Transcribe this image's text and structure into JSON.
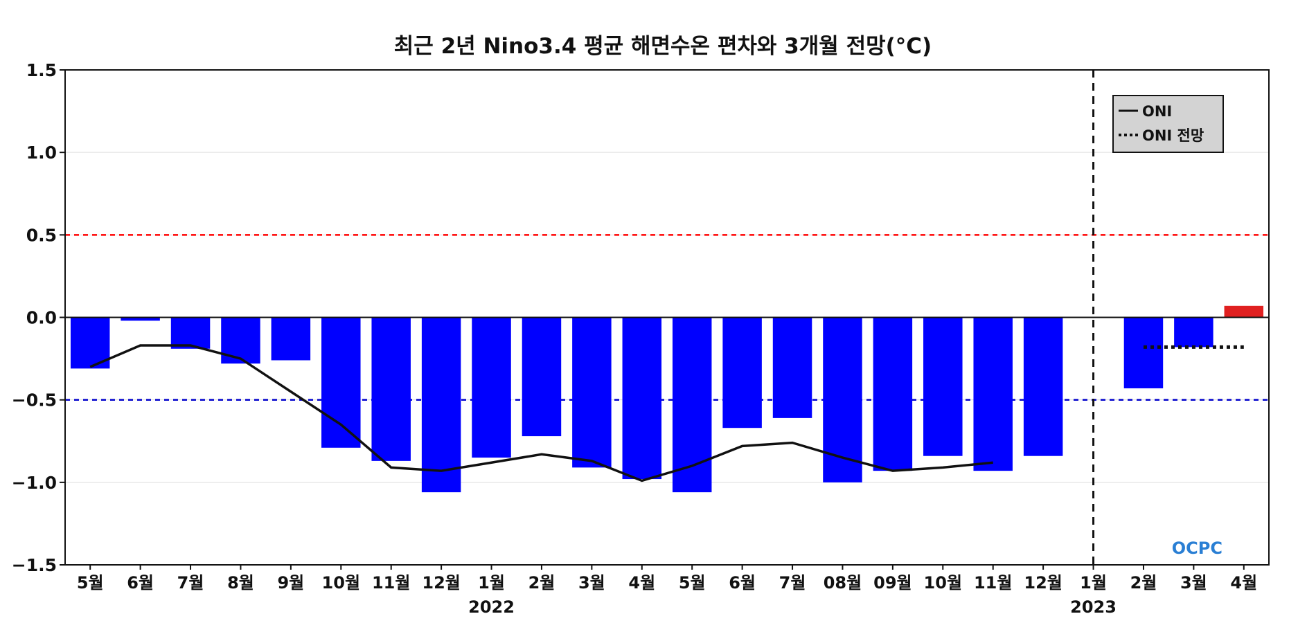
{
  "chart_data": {
    "type": "bar",
    "title": "최근 2년 Nino3.4 평균 해면수온 편차와 3개월 전망(°C)",
    "xlabel": "",
    "ylabel": "",
    "ylim": [
      -1.5,
      1.5
    ],
    "yticks": [
      "1.5",
      "1.0",
      "0.5",
      "0.0",
      "−0.5",
      "−1.0",
      "−1.5"
    ],
    "ytick_values": [
      1.5,
      1.0,
      0.5,
      0.0,
      -0.5,
      -1.0,
      -1.5
    ],
    "grid": true,
    "categories": [
      "5월",
      "6월",
      "7월",
      "8월",
      "9월",
      "10월",
      "11월",
      "12월",
      "1월",
      "2월",
      "3월",
      "4월",
      "5월",
      "6월",
      "7월",
      "08월",
      "09월",
      "10월",
      "11월",
      "12월",
      "1월",
      "2월",
      "3월",
      "4월"
    ],
    "year_labels": [
      {
        "label": "2022",
        "category_index": 8
      },
      {
        "label": "2023",
        "category_index": 20
      }
    ],
    "bars": [
      -0.31,
      -0.02,
      -0.19,
      -0.28,
      -0.26,
      -0.79,
      -0.87,
      -1.06,
      -0.85,
      -0.72,
      -0.91,
      -0.98,
      -1.06,
      -0.67,
      -0.61,
      -1.0,
      -0.93,
      -0.84,
      -0.93,
      -0.84,
      null,
      -0.43,
      -0.18,
      0.07
    ],
    "bar_colors": {
      "negative": "#0000ff",
      "positive": "#e02020"
    },
    "series": [
      {
        "name": "ONI",
        "style": "solid",
        "color": "#111111",
        "values": [
          -0.3,
          -0.17,
          -0.17,
          -0.25,
          -0.45,
          -0.65,
          -0.91,
          -0.93,
          -0.88,
          -0.83,
          -0.87,
          -0.99,
          -0.9,
          -0.78,
          -0.76,
          -0.85,
          -0.93,
          -0.91,
          -0.88,
          null,
          null,
          null,
          null,
          null
        ]
      },
      {
        "name": "ONI 전망",
        "style": "dotted",
        "color": "#111111",
        "values": [
          null,
          null,
          null,
          null,
          null,
          null,
          null,
          null,
          null,
          null,
          null,
          null,
          null,
          null,
          null,
          null,
          null,
          null,
          null,
          null,
          null,
          -0.18,
          -0.18,
          -0.18
        ]
      }
    ],
    "reference_lines": [
      {
        "value": 0.5,
        "color": "#ff0000",
        "style": "dashed"
      },
      {
        "value": -0.5,
        "color": "#0000cc",
        "style": "dashed"
      }
    ],
    "vertical_marker_category_index": 20,
    "legend_position": "top-right",
    "logo": "OCPC"
  }
}
